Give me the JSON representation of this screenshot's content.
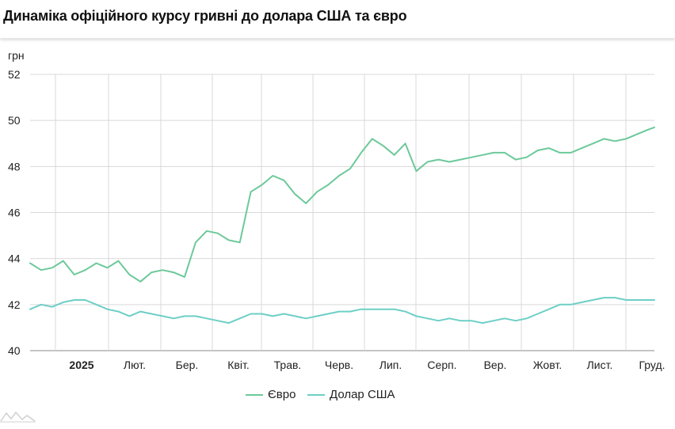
{
  "header": {
    "title": "Динаміка офіційного курсу гривні до долара США та євро"
  },
  "colors": {
    "eur": "#6cc99a",
    "usd": "#6dcfc6",
    "grid": "#d9d9d9",
    "axis_text": "#222222"
  },
  "legend": {
    "eur_label": "Євро",
    "usd_label": "Долар США"
  },
  "watermark_icon": "mountain-logo-icon",
  "chart_data": {
    "type": "line",
    "title": "Динаміка офіційного курсу гривні до долара США та євро",
    "ylabel": "грн",
    "ylim": [
      40,
      52
    ],
    "yticks": [
      40,
      42,
      44,
      46,
      48,
      50,
      52
    ],
    "grid": true,
    "legend_position": "bottom",
    "x_tick_labels": [
      {
        "label": "2025",
        "bold": true
      },
      {
        "label": "Лют.",
        "bold": false
      },
      {
        "label": "Бер.",
        "bold": false
      },
      {
        "label": "Квіт.",
        "bold": false
      },
      {
        "label": "Трав.",
        "bold": false
      },
      {
        "label": "Черв.",
        "bold": false
      },
      {
        "label": "Лип.",
        "bold": false
      },
      {
        "label": "Серп.",
        "bold": false
      },
      {
        "label": "Вер.",
        "bold": false
      },
      {
        "label": "Жовт.",
        "bold": false
      },
      {
        "label": "Лист.",
        "bold": false
      },
      {
        "label": "Груд.",
        "bold": false
      }
    ],
    "x": [
      "2024-12-01",
      "2024-12-08",
      "2024-12-15",
      "2024-12-22",
      "2024-12-29",
      "2025-01-05",
      "2025-01-12",
      "2025-01-19",
      "2025-01-26",
      "2025-02-02",
      "2025-02-09",
      "2025-02-16",
      "2025-02-23",
      "2025-03-02",
      "2025-03-09",
      "2025-03-16",
      "2025-03-23",
      "2025-03-30",
      "2025-04-06",
      "2025-04-13",
      "2025-04-20",
      "2025-04-27",
      "2025-05-04",
      "2025-05-11",
      "2025-05-18",
      "2025-05-25",
      "2025-06-01",
      "2025-06-08",
      "2025-06-15",
      "2025-06-22",
      "2025-06-29",
      "2025-07-06",
      "2025-07-13",
      "2025-07-20",
      "2025-07-27",
      "2025-08-03",
      "2025-08-10",
      "2025-08-17",
      "2025-08-24",
      "2025-08-31",
      "2025-09-07",
      "2025-09-14",
      "2025-09-21",
      "2025-09-28",
      "2025-10-05",
      "2025-10-12",
      "2025-10-19",
      "2025-10-26",
      "2025-11-02",
      "2025-11-09",
      "2025-11-16",
      "2025-11-23",
      "2025-11-30",
      "2025-12-07",
      "2025-12-14",
      "2025-12-21",
      "2025-12-28",
      "2026-01-01"
    ],
    "series": [
      {
        "name": "Євро",
        "color": "#6cc99a",
        "values": [
          43.8,
          43.5,
          43.6,
          43.9,
          43.3,
          43.5,
          43.8,
          43.6,
          43.9,
          43.3,
          43.0,
          43.4,
          43.5,
          43.4,
          43.2,
          44.7,
          45.2,
          45.1,
          44.8,
          44.7,
          46.9,
          47.2,
          47.6,
          47.4,
          46.8,
          46.4,
          46.9,
          47.2,
          47.6,
          47.9,
          48.6,
          49.2,
          48.9,
          48.5,
          49.0,
          47.8,
          48.2,
          48.3,
          48.2,
          48.3,
          48.4,
          48.5,
          48.6,
          48.6,
          48.3,
          48.4,
          48.7,
          48.8,
          48.6,
          48.6,
          48.8,
          49.0,
          49.2,
          49.1,
          49.2,
          49.4,
          49.6,
          49.7
        ]
      },
      {
        "name": "Долар США",
        "color": "#6dcfc6",
        "values": [
          41.8,
          42.0,
          41.9,
          42.1,
          42.2,
          42.2,
          42.0,
          41.8,
          41.7,
          41.5,
          41.7,
          41.6,
          41.5,
          41.4,
          41.5,
          41.5,
          41.4,
          41.3,
          41.2,
          41.4,
          41.6,
          41.6,
          41.5,
          41.6,
          41.5,
          41.4,
          41.5,
          41.6,
          41.7,
          41.7,
          41.8,
          41.8,
          41.8,
          41.8,
          41.7,
          41.5,
          41.4,
          41.3,
          41.4,
          41.3,
          41.3,
          41.2,
          41.3,
          41.4,
          41.3,
          41.4,
          41.6,
          41.8,
          42.0,
          42.0,
          42.1,
          42.2,
          42.3,
          42.3,
          42.2,
          42.2,
          42.2,
          42.2
        ]
      }
    ]
  }
}
